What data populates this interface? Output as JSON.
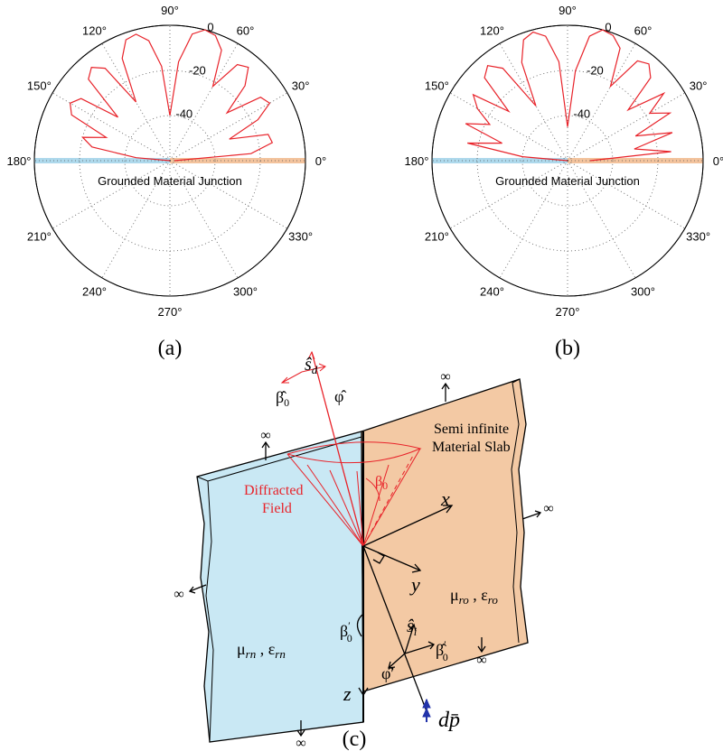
{
  "chart_data": [
    {
      "type": "polar",
      "caption": "(a)",
      "annotation": "Grounded Material Junction",
      "color": "#e8232a",
      "junction_colors": [
        "#aed9ec",
        "#f3c39d"
      ],
      "theta": [
        0,
        5,
        10,
        15,
        20,
        25,
        30,
        35,
        40,
        45,
        50,
        55,
        60,
        65,
        70,
        75,
        80,
        85,
        90,
        95,
        100,
        105,
        110,
        115,
        120,
        125,
        130,
        135,
        140,
        145,
        150,
        155,
        160,
        165,
        170,
        175,
        180
      ],
      "r": [
        -58,
        -24,
        -14,
        -15,
        -32,
        -17,
        -9,
        -11,
        -27,
        -13,
        -6,
        -8,
        -22,
        -6,
        -1,
        0,
        -3,
        -16,
        -40,
        -18,
        -6,
        -2,
        -3,
        -10,
        -30,
        -10,
        -6,
        -9,
        -30,
        -12,
        -9,
        -12,
        -30,
        -20,
        -25,
        -45,
        -60
      ],
      "rlim": [
        -60,
        0
      ],
      "rticks": [
        0,
        -20,
        -40
      ],
      "thetaticks": [
        {
          "value": 0,
          "label": "0°"
        },
        {
          "value": 30,
          "label": "30°"
        },
        {
          "value": 60,
          "label": "60°"
        },
        {
          "value": 90,
          "label": "90°"
        },
        {
          "value": 120,
          "label": "120°"
        },
        {
          "value": 150,
          "label": "150°"
        },
        {
          "value": 180,
          "label": "180°"
        },
        {
          "value": 210,
          "label": "210°"
        },
        {
          "value": 240,
          "label": "240°"
        },
        {
          "value": 270,
          "label": "270°"
        },
        {
          "value": 300,
          "label": "300°"
        },
        {
          "value": 330,
          "label": "330°"
        }
      ]
    },
    {
      "type": "polar",
      "caption": "(b)",
      "annotation": "Grounded Material Junction",
      "color": "#e8232a",
      "junction_colors": [
        "#aed9ec",
        "#f3c39d"
      ],
      "theta": [
        0,
        5,
        10,
        15,
        20,
        25,
        30,
        35,
        40,
        45,
        50,
        55,
        60,
        65,
        70,
        75,
        80,
        85,
        90,
        95,
        100,
        105,
        110,
        115,
        120,
        125,
        130,
        135,
        140,
        145,
        150,
        155,
        160,
        165,
        170,
        175,
        180
      ],
      "r": [
        -50,
        -14,
        -30,
        -12,
        -28,
        -10,
        -18,
        -8,
        -25,
        -8,
        -4,
        -6,
        -22,
        -5,
        -1,
        0,
        -4,
        -20,
        -45,
        -16,
        -4,
        -1,
        -3,
        -12,
        -32,
        -10,
        -5,
        -8,
        -26,
        -9,
        -14,
        -22,
        -12,
        -30,
        -15,
        -40,
        -60
      ],
      "rlim": [
        -60,
        0
      ],
      "rticks": [
        0,
        -20,
        -40
      ],
      "thetaticks": [
        {
          "value": 0,
          "label": "0°"
        },
        {
          "value": 30,
          "label": "30°"
        },
        {
          "value": 60,
          "label": "60°"
        },
        {
          "value": 90,
          "label": "90°"
        },
        {
          "value": 120,
          "label": "120°"
        },
        {
          "value": 150,
          "label": "150°"
        },
        {
          "value": 180,
          "label": "180°"
        },
        {
          "value": 210,
          "label": "210°"
        },
        {
          "value": 240,
          "label": "240°"
        },
        {
          "value": 270,
          "label": "270°"
        },
        {
          "value": 300,
          "label": "300°"
        },
        {
          "value": 330,
          "label": "330°"
        }
      ]
    }
  ],
  "diagram": {
    "caption": "(c)",
    "slab_label": [
      "Semi infinite",
      "Material Slab"
    ],
    "field_label": [
      "Diffracted",
      "Field"
    ],
    "infinity": "∞",
    "axes": {
      "x": "x",
      "y": "y",
      "z": "z"
    },
    "s_d": {
      "base": "ŝ",
      "sub": "d"
    },
    "beta0_hat": {
      "base": "β̂",
      "sub": "0"
    },
    "phi_hat": "φ̂",
    "beta0": {
      "base": "β",
      "sub": "0"
    },
    "beta0_prime": {
      "base": "β",
      "sup": "′",
      "sub": "0"
    },
    "s_i": {
      "base": "ŝ",
      "sub": "i"
    },
    "beta0_prime_hat": {
      "base": "β̂",
      "sup": "′",
      "sub": "0"
    },
    "phi_prime_hat": "φ̂′",
    "dp": "dp̄",
    "medium_o": [
      "μ",
      "ro",
      " , ε",
      "ro"
    ],
    "medium_n": [
      "μ",
      "rn",
      " , ε",
      "rn"
    ]
  }
}
